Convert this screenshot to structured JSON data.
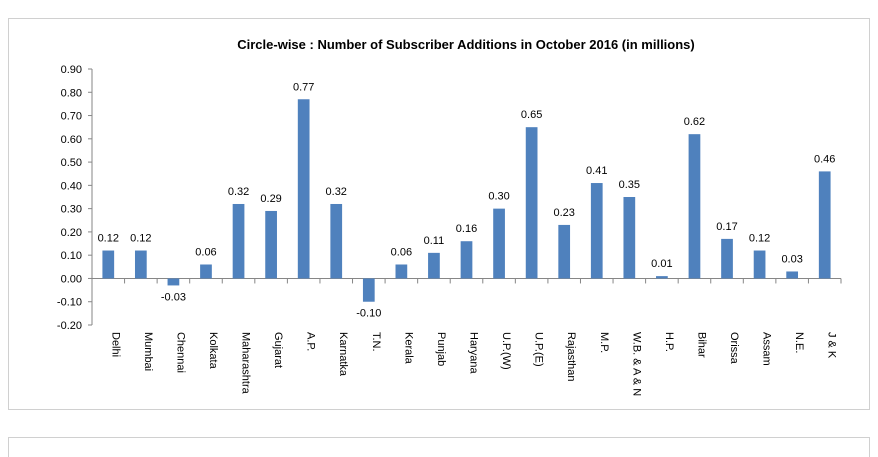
{
  "chart_data": {
    "type": "bar",
    "title": "Circle-wise : Number of Subscriber Additions in October  2016 (in millions)",
    "xlabel": "",
    "ylabel": "",
    "ylim": [
      -0.2,
      0.9
    ],
    "yticks": [
      "-0.20",
      "-0.10",
      "0.00",
      "0.10",
      "0.20",
      "0.30",
      "0.40",
      "0.50",
      "0.60",
      "0.70",
      "0.80",
      "0.90"
    ],
    "grid": false,
    "legend": "none",
    "categories": [
      "Delhi",
      "Mumbai",
      "Chennai",
      "Kolkata",
      "Maharashtra",
      "Gujarat",
      "A.P.",
      "Karnatka",
      "T.N.",
      "Kerala",
      "Punjab",
      "Haryana",
      "U.P.(W)",
      "U.P.(E)",
      "Rajasthan",
      "M.P.",
      "W.B. & A & N",
      "H.P.",
      "Bihar",
      "Orissa",
      "Assam",
      "N.E.",
      "J & K"
    ],
    "values": [
      0.12,
      0.12,
      -0.03,
      0.06,
      0.32,
      0.29,
      0.77,
      0.32,
      -0.1,
      0.06,
      0.11,
      0.16,
      0.3,
      0.65,
      0.23,
      0.41,
      0.35,
      0.01,
      0.62,
      0.17,
      0.12,
      0.03,
      0.46
    ],
    "value_labels": [
      "0.12",
      "0.12",
      "-0.03",
      "0.06",
      "0.32",
      "0.29",
      "0.77",
      "0.32",
      "-0.10",
      "0.06",
      "0.11",
      "0.16",
      "0.30",
      "0.65",
      "0.23",
      "0.41",
      "0.35",
      "0.01",
      "0.62",
      "0.17",
      "0.12",
      "0.03",
      "0.46"
    ],
    "colors": {
      "bar": "#4f81bd",
      "axis": "#868686",
      "text": "#000000"
    }
  }
}
